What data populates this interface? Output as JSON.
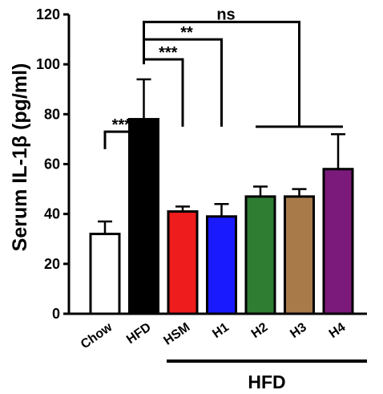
{
  "chart_data": {
    "type": "bar",
    "ylabel": "Serum IL-1β (pg/ml)",
    "ylim": [
      0,
      120
    ],
    "yticks": [
      0,
      20,
      40,
      60,
      80,
      100,
      120
    ],
    "categories": [
      "Chow",
      "HFD",
      "HSM",
      "H1",
      "H2",
      "H3",
      "H4"
    ],
    "values": [
      32,
      78,
      41,
      39,
      47,
      47,
      58
    ],
    "errors": [
      5,
      16,
      2,
      5,
      4,
      3,
      14
    ],
    "colors": [
      "#ffffff",
      "#000000",
      "#ee1c1c",
      "#1a1aff",
      "#2e7d32",
      "#a87a4a",
      "#7b1a7a"
    ],
    "group_label": "HFD",
    "group_span": [
      "HSM",
      "H4"
    ],
    "significance": [
      {
        "label": "****",
        "from": "Chow",
        "to": "HFD"
      },
      {
        "label": "***",
        "from": "HFD",
        "to": "HSM"
      },
      {
        "label": "**",
        "from": "HFD",
        "to": "H1"
      },
      {
        "label": "ns",
        "from": "HFD",
        "to": [
          "H2",
          "H3",
          "H4"
        ]
      }
    ]
  }
}
